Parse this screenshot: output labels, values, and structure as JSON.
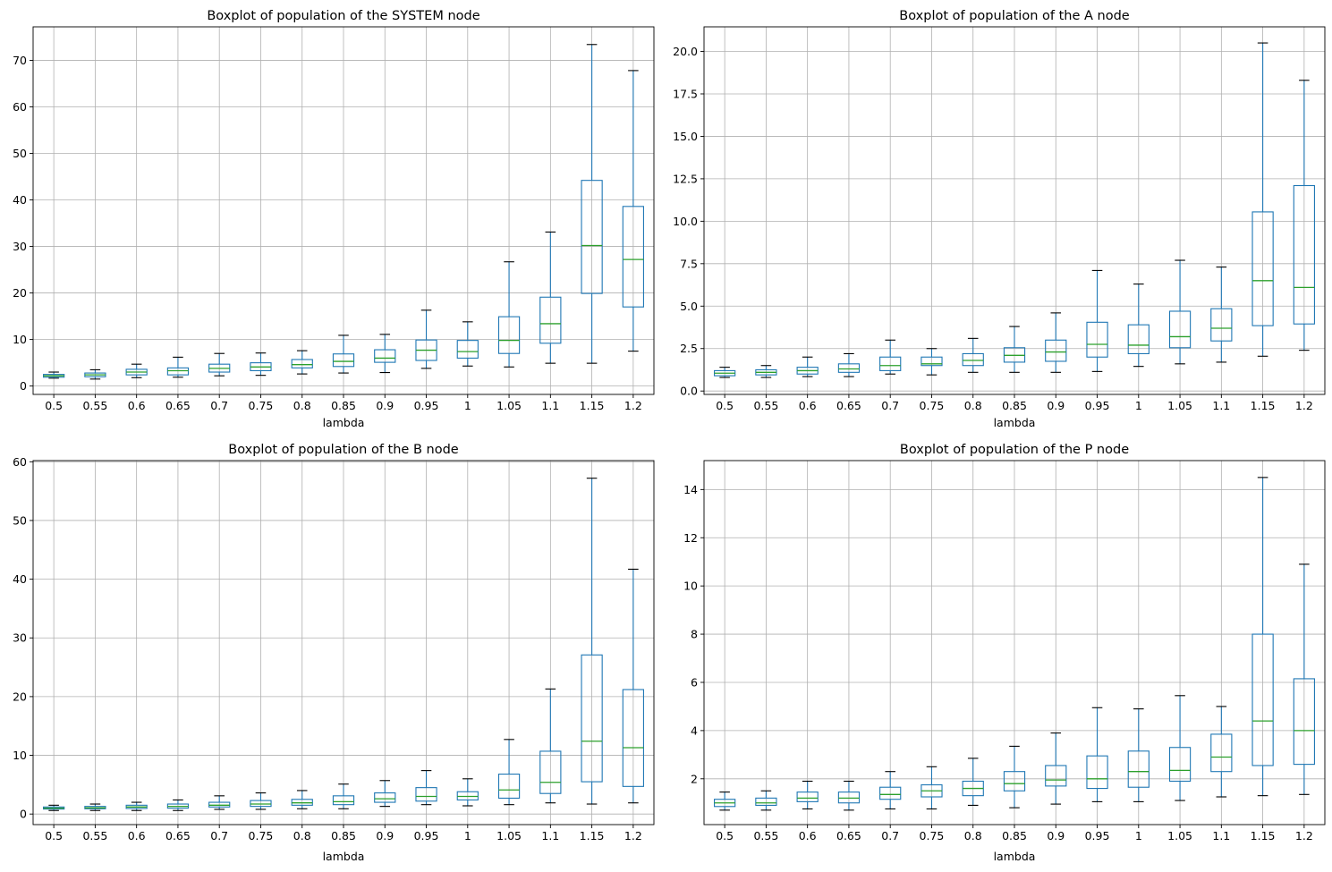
{
  "colors": {
    "box": "#1f77b4",
    "median": "#2ca02c",
    "whisker_cap": "#000000",
    "grid": "#b0b0b0",
    "axes": "#000000",
    "background": "#ffffff"
  },
  "chart_data": [
    {
      "type": "boxplot",
      "title": "Boxplot of population of the SYSTEM node",
      "xlabel": "lambda",
      "ylabel": "",
      "ylim": [
        -1.8,
        77.2
      ],
      "yticks": [
        0,
        10,
        20,
        30,
        40,
        50,
        60,
        70
      ],
      "ytick_labels": [
        "0",
        "10",
        "20",
        "30",
        "40",
        "50",
        "60",
        "70"
      ],
      "grid": true,
      "categories": [
        "0.5",
        "0.55",
        "0.6",
        "0.65",
        "0.7",
        "0.75",
        "0.8",
        "0.85",
        "0.9",
        "0.95",
        "1",
        "1.05",
        "1.1",
        "1.15",
        "1.2"
      ],
      "boxes": [
        {
          "whislo": 1.7,
          "q1": 1.9,
          "med": 2.2,
          "q3": 2.5,
          "whishi": 3.0
        },
        {
          "whislo": 1.5,
          "q1": 2.0,
          "med": 2.4,
          "q3": 2.8,
          "whishi": 3.5
        },
        {
          "whislo": 1.8,
          "q1": 2.4,
          "med": 3.0,
          "q3": 3.6,
          "whishi": 4.7
        },
        {
          "whislo": 1.9,
          "q1": 2.4,
          "med": 3.3,
          "q3": 3.9,
          "whishi": 6.2
        },
        {
          "whislo": 2.2,
          "q1": 3.0,
          "med": 3.8,
          "q3": 4.7,
          "whishi": 7.0
        },
        {
          "whislo": 2.3,
          "q1": 3.3,
          "med": 4.1,
          "q3": 5.0,
          "whishi": 7.1
        },
        {
          "whislo": 2.6,
          "q1": 3.9,
          "med": 4.6,
          "q3": 5.7,
          "whishi": 7.6
        },
        {
          "whislo": 2.8,
          "q1": 4.2,
          "med": 5.3,
          "q3": 6.9,
          "whishi": 10.9
        },
        {
          "whislo": 2.9,
          "q1": 5.1,
          "med": 6.0,
          "q3": 7.8,
          "whishi": 11.1
        },
        {
          "whislo": 3.8,
          "q1": 5.5,
          "med": 7.7,
          "q3": 9.9,
          "whishi": 16.3
        },
        {
          "whislo": 4.3,
          "q1": 6.0,
          "med": 7.4,
          "q3": 9.8,
          "whishi": 13.8
        },
        {
          "whislo": 4.1,
          "q1": 7.0,
          "med": 9.8,
          "q3": 14.9,
          "whishi": 26.7
        },
        {
          "whislo": 4.9,
          "q1": 9.2,
          "med": 13.4,
          "q3": 19.1,
          "whishi": 33.1
        },
        {
          "whislo": 4.9,
          "q1": 19.9,
          "med": 30.2,
          "q3": 44.2,
          "whishi": 73.4
        },
        {
          "whislo": 7.5,
          "q1": 17.0,
          "med": 27.2,
          "q3": 38.6,
          "whishi": 67.8
        }
      ]
    },
    {
      "type": "boxplot",
      "title": "Boxplot of population of the A node",
      "xlabel": "lambda",
      "ylabel": "",
      "ylim": [
        -0.2,
        21.45
      ],
      "yticks": [
        0,
        2.5,
        5,
        7.5,
        10,
        12.5,
        15,
        17.5,
        20
      ],
      "ytick_labels": [
        "0.0",
        "2.5",
        "5.0",
        "7.5",
        "10.0",
        "12.5",
        "15.0",
        "17.5",
        "20.0"
      ],
      "grid": true,
      "categories": [
        "0.5",
        "0.55",
        "0.6",
        "0.65",
        "0.7",
        "0.75",
        "0.8",
        "0.85",
        "0.9",
        "0.95",
        "1",
        "1.05",
        "1.1",
        "1.15",
        "1.2"
      ],
      "boxes": [
        {
          "whislo": 0.8,
          "q1": 0.9,
          "med": 1.05,
          "q3": 1.2,
          "whishi": 1.4
        },
        {
          "whislo": 0.8,
          "q1": 0.95,
          "med": 1.1,
          "q3": 1.25,
          "whishi": 1.5
        },
        {
          "whislo": 0.85,
          "q1": 1.0,
          "med": 1.2,
          "q3": 1.4,
          "whishi": 2.0
        },
        {
          "whislo": 0.85,
          "q1": 1.1,
          "med": 1.3,
          "q3": 1.6,
          "whishi": 2.2
        },
        {
          "whislo": 1.0,
          "q1": 1.2,
          "med": 1.5,
          "q3": 2.0,
          "whishi": 3.0
        },
        {
          "whislo": 0.95,
          "q1": 1.5,
          "med": 1.6,
          "q3": 2.0,
          "whishi": 2.5
        },
        {
          "whislo": 1.1,
          "q1": 1.5,
          "med": 1.8,
          "q3": 2.2,
          "whishi": 3.1
        },
        {
          "whislo": 1.1,
          "q1": 1.7,
          "med": 2.1,
          "q3": 2.55,
          "whishi": 3.8
        },
        {
          "whislo": 1.1,
          "q1": 1.75,
          "med": 2.3,
          "q3": 3.0,
          "whishi": 4.6
        },
        {
          "whislo": 1.15,
          "q1": 2.0,
          "med": 2.75,
          "q3": 4.05,
          "whishi": 7.1
        },
        {
          "whislo": 1.45,
          "q1": 2.2,
          "med": 2.7,
          "q3": 3.9,
          "whishi": 6.3
        },
        {
          "whislo": 1.6,
          "q1": 2.55,
          "med": 3.2,
          "q3": 4.7,
          "whishi": 7.7
        },
        {
          "whislo": 1.7,
          "q1": 2.95,
          "med": 3.7,
          "q3": 4.85,
          "whishi": 7.3
        },
        {
          "whislo": 2.05,
          "q1": 3.85,
          "med": 6.5,
          "q3": 10.55,
          "whishi": 20.5
        },
        {
          "whislo": 2.4,
          "q1": 3.95,
          "med": 6.1,
          "q3": 12.1,
          "whishi": 18.3
        }
      ]
    },
    {
      "type": "boxplot",
      "title": "Boxplot of population of the B node",
      "xlabel": "lambda",
      "ylabel": "",
      "ylim": [
        -1.8,
        60.2
      ],
      "yticks": [
        0,
        10,
        20,
        30,
        40,
        50,
        60
      ],
      "ytick_labels": [
        "0",
        "10",
        "20",
        "30",
        "40",
        "50",
        "60"
      ],
      "grid": true,
      "categories": [
        "0.5",
        "0.55",
        "0.6",
        "0.65",
        "0.7",
        "0.75",
        "0.8",
        "0.85",
        "0.9",
        "0.95",
        "1",
        "1.05",
        "1.1",
        "1.15",
        "1.2"
      ],
      "boxes": [
        {
          "whislo": 0.6,
          "q1": 0.85,
          "med": 1.0,
          "q3": 1.2,
          "whishi": 1.5
        },
        {
          "whislo": 0.6,
          "q1": 0.9,
          "med": 1.05,
          "q3": 1.3,
          "whishi": 1.7
        },
        {
          "whislo": 0.6,
          "q1": 0.95,
          "med": 1.2,
          "q3": 1.5,
          "whishi": 2.0
        },
        {
          "whislo": 0.6,
          "q1": 1.0,
          "med": 1.3,
          "q3": 1.7,
          "whishi": 2.4
        },
        {
          "whislo": 0.8,
          "q1": 1.2,
          "med": 1.5,
          "q3": 2.0,
          "whishi": 3.1
        },
        {
          "whislo": 0.8,
          "q1": 1.3,
          "med": 1.7,
          "q3": 2.3,
          "whishi": 3.6
        },
        {
          "whislo": 0.9,
          "q1": 1.5,
          "med": 1.9,
          "q3": 2.5,
          "whishi": 4.0
        },
        {
          "whislo": 0.9,
          "q1": 1.6,
          "med": 2.1,
          "q3": 3.1,
          "whishi": 5.1
        },
        {
          "whislo": 1.3,
          "q1": 2.0,
          "med": 2.6,
          "q3": 3.6,
          "whishi": 5.7
        },
        {
          "whislo": 1.6,
          "q1": 2.2,
          "med": 3.0,
          "q3": 4.5,
          "whishi": 7.4
        },
        {
          "whislo": 1.4,
          "q1": 2.4,
          "med": 3.0,
          "q3": 3.8,
          "whishi": 6.0
        },
        {
          "whislo": 1.6,
          "q1": 2.7,
          "med": 4.1,
          "q3": 6.8,
          "whishi": 12.7
        },
        {
          "whislo": 1.9,
          "q1": 3.5,
          "med": 5.4,
          "q3": 10.7,
          "whishi": 21.3
        },
        {
          "whislo": 1.7,
          "q1": 5.5,
          "med": 12.4,
          "q3": 27.1,
          "whishi": 57.2
        },
        {
          "whislo": 1.9,
          "q1": 4.7,
          "med": 11.3,
          "q3": 21.2,
          "whishi": 41.7
        }
      ]
    },
    {
      "type": "boxplot",
      "title": "Boxplot of population of the P node",
      "xlabel": "lambda",
      "ylabel": "",
      "ylim": [
        0.1,
        15.2
      ],
      "yticks": [
        2,
        4,
        6,
        8,
        10,
        12,
        14
      ],
      "ytick_labels": [
        "2",
        "4",
        "6",
        "8",
        "10",
        "12",
        "14"
      ],
      "grid": true,
      "categories": [
        "0.5",
        "0.55",
        "0.6",
        "0.65",
        "0.7",
        "0.75",
        "0.8",
        "0.85",
        "0.9",
        "0.95",
        "1",
        "1.05",
        "1.1",
        "1.15",
        "1.2"
      ],
      "boxes": [
        {
          "whislo": 0.7,
          "q1": 0.85,
          "med": 1.0,
          "q3": 1.15,
          "whishi": 1.45
        },
        {
          "whislo": 0.7,
          "q1": 0.9,
          "med": 1.0,
          "q3": 1.2,
          "whishi": 1.5
        },
        {
          "whislo": 0.75,
          "q1": 1.05,
          "med": 1.2,
          "q3": 1.45,
          "whishi": 1.9
        },
        {
          "whislo": 0.7,
          "q1": 1.0,
          "med": 1.2,
          "q3": 1.45,
          "whishi": 1.9
        },
        {
          "whislo": 0.75,
          "q1": 1.15,
          "med": 1.35,
          "q3": 1.65,
          "whishi": 2.3
        },
        {
          "whislo": 0.75,
          "q1": 1.25,
          "med": 1.5,
          "q3": 1.75,
          "whishi": 2.5
        },
        {
          "whislo": 0.9,
          "q1": 1.3,
          "med": 1.6,
          "q3": 1.9,
          "whishi": 2.85
        },
        {
          "whislo": 0.8,
          "q1": 1.5,
          "med": 1.8,
          "q3": 2.3,
          "whishi": 3.35
        },
        {
          "whislo": 0.95,
          "q1": 1.7,
          "med": 1.95,
          "q3": 2.55,
          "whishi": 3.9
        },
        {
          "whislo": 1.05,
          "q1": 1.6,
          "med": 2.0,
          "q3": 2.95,
          "whishi": 4.95
        },
        {
          "whislo": 1.05,
          "q1": 1.65,
          "med": 2.3,
          "q3": 3.15,
          "whishi": 4.9
        },
        {
          "whislo": 1.1,
          "q1": 1.9,
          "med": 2.35,
          "q3": 3.3,
          "whishi": 5.45
        },
        {
          "whislo": 1.25,
          "q1": 2.3,
          "med": 2.9,
          "q3": 3.85,
          "whishi": 5.0
        },
        {
          "whislo": 1.3,
          "q1": 2.55,
          "med": 4.4,
          "q3": 8.0,
          "whishi": 14.5
        },
        {
          "whislo": 1.35,
          "q1": 2.6,
          "med": 4.0,
          "q3": 6.15,
          "whishi": 10.9
        }
      ]
    }
  ]
}
